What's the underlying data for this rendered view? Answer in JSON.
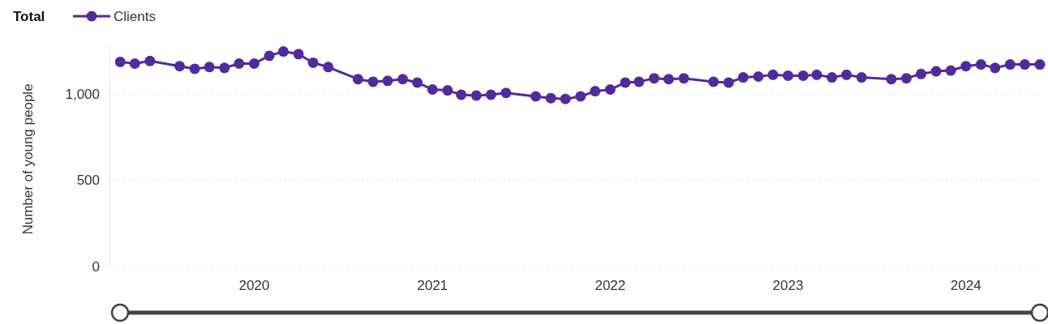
{
  "chart_data": {
    "type": "line",
    "ylabel": "Number of young people",
    "legend_title": "Total",
    "legend": "top left",
    "grid": "y",
    "marker": "circle",
    "line_style": "solid",
    "xlim": [
      "2019-03-10",
      "2024-06-06"
    ],
    "xticks": [
      "2020",
      "2021",
      "2022",
      "2023",
      "2024"
    ],
    "ylim": [
      0,
      1290
    ],
    "yticks": [
      0,
      500,
      {
        "value": 1000,
        "label": "1,000"
      }
    ],
    "x": [
      "2019-04",
      "2019-05",
      "2019-06",
      "2019-08",
      "2019-09",
      "2019-10",
      "2019-11",
      "2019-12",
      "2020-01",
      "2020-02",
      "2020-03",
      "2020-04",
      "2020-05",
      "2020-06",
      "2020-08",
      "2020-09",
      "2020-10",
      "2020-11",
      "2020-12",
      "2021-01",
      "2021-02",
      "2021-03",
      "2021-04",
      "2021-05",
      "2021-06",
      "2021-08",
      "2021-09",
      "2021-10",
      "2021-11",
      "2021-12",
      "2022-01",
      "2022-02",
      "2022-03",
      "2022-04",
      "2022-05",
      "2022-06",
      "2022-08",
      "2022-09",
      "2022-10",
      "2022-11",
      "2022-12",
      "2023-01",
      "2023-02",
      "2023-03",
      "2023-04",
      "2023-05",
      "2023-06",
      "2023-08",
      "2023-09",
      "2023-10",
      "2023-11",
      "2023-12",
      "2024-01",
      "2024-02",
      "2024-03",
      "2024-04",
      "2024-05",
      "2024-06"
    ],
    "series": [
      {
        "name": "Clients",
        "color": "#512b9b",
        "values": [
          1185,
          1175,
          1190,
          1160,
          1145,
          1155,
          1150,
          1175,
          1175,
          1220,
          1245,
          1230,
          1180,
          1155,
          1085,
          1070,
          1075,
          1085,
          1065,
          1025,
          1020,
          995,
          990,
          995,
          1005,
          985,
          975,
          970,
          985,
          1015,
          1025,
          1065,
          1070,
          1090,
          1085,
          1090,
          1070,
          1065,
          1095,
          1100,
          1110,
          1105,
          1105,
          1110,
          1095,
          1110,
          1095,
          1085,
          1090,
          1115,
          1130,
          1135,
          1160,
          1170,
          1150,
          1170,
          1170,
          1170
        ]
      }
    ]
  }
}
